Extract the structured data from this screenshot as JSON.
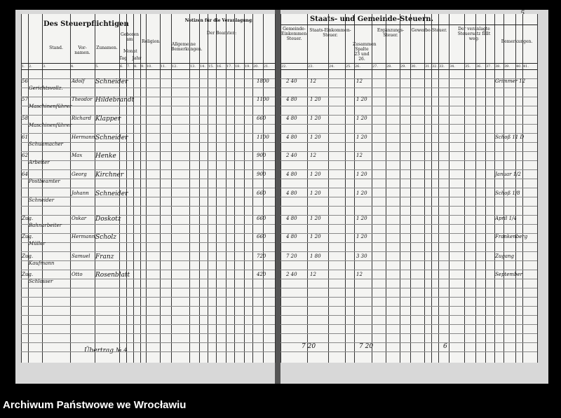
{
  "page_number": "5",
  "footer": "Archiwum Państwowe we Wrocławiu",
  "left": {
    "title": "Des Steuerpflichtigen",
    "stand": "Stand.",
    "vornamen": "Vor-namen.",
    "zunamen": "Zunamen.",
    "geboren": "Geboren am",
    "tag": "Tag",
    "monat": "Monat",
    "jahr": "Jahr",
    "religion": "Religion.",
    "notizen": "Notizen für die Veranlagung:",
    "allgemeine": "Allgemeine Bemerkungen.",
    "beamten": "Der Beamten:",
    "col_numbers": [
      "1.",
      "2.",
      "3.",
      "4.",
      "5.",
      "6.",
      "7.",
      "8.",
      "9.",
      "10.",
      "11.",
      "12.",
      "13.",
      "14.",
      "15.",
      "16.",
      "17.",
      "18.",
      "19.",
      "20.",
      "21."
    ],
    "rows": [
      {
        "nr": "56",
        "stand": "Gerichtsvollz.",
        "vorname": "Adolf",
        "zuname": "Schneider",
        "amount": "1800"
      },
      {
        "nr": "57",
        "stand": "Maschinenführer",
        "vorname": "Theodor",
        "zuname": "Hildebrandt",
        "amount": "1100"
      },
      {
        "nr": "58",
        "stand": "Maschinenführer",
        "vorname": "Richard",
        "zuname": "Klapper",
        "amount": "660"
      },
      {
        "nr": "61",
        "stand": "Schuhmacher",
        "vorname": "Hermann",
        "zuname": "Schneider",
        "amount": "1100"
      },
      {
        "nr": "62",
        "stand": "Arbeiter",
        "vorname": "Max",
        "zuname": "Henke",
        "amount": "900"
      },
      {
        "nr": "64",
        "stand": "Postbeamter",
        "vorname": "Georg",
        "zuname": "Kirchner",
        "amount": "900"
      },
      {
        "nr": "",
        "stand": "Schneider",
        "vorname": "Johann",
        "zuname": "Schneider",
        "amount": "660"
      },
      {
        "nr": "Zug.",
        "stand": "Bahnarbeiter",
        "vorname": "Oskar",
        "zuname": "Doskotz",
        "amount": "660"
      },
      {
        "nr": "Zug.",
        "stand": "Müller",
        "vorname": "Hermann",
        "zuname": "Scholz",
        "amount": "660"
      },
      {
        "nr": "Zug.",
        "stand": "Kaufmann",
        "vorname": "Samuel",
        "zuname": "Franz",
        "amount": "720"
      },
      {
        "nr": "Zug.",
        "stand": "Schlosser",
        "vorname": "Otto",
        "zuname": "Rosenblatt",
        "amount": "420"
      }
    ],
    "bottom_note": "Übertrag № 4"
  },
  "right": {
    "title": "Staats- und Gemeinde-Steuern.",
    "gemeinde_einkommen": "Gemeinde-Einkommen-Steuer.",
    "staats_einkommen": "Staats-Einkommen-Steuer.",
    "ergaenzung": "Ergänzungs-Steuer.",
    "gewerbe": "Gewerbe-Steuer.",
    "veranlagt": "Der veranlagte Steuersatz fällt weg:",
    "summe": "Zusammen Spalte 23 und 26.",
    "bemerkungen": "Bemerkungen.",
    "col_numbers": [
      "22.",
      "23.",
      "24.",
      "25.",
      "26.",
      "27.",
      "28.",
      "29.",
      "30.",
      "31.",
      "32.",
      "33.",
      "34.",
      "35.",
      "36.",
      "37.",
      "38.",
      "39.",
      "40.",
      "41."
    ],
    "rows": [
      {
        "a": "2 40",
        "b": "12",
        "c": "12",
        "rem": "Grimmer 12"
      },
      {
        "a": "4 80",
        "b": "1 20",
        "c": "1 20",
        "rem": ""
      },
      {
        "a": "4 80",
        "b": "1 20",
        "c": "1 20",
        "rem": ""
      },
      {
        "a": "4 80",
        "b": "1 20",
        "c": "1 20",
        "rem": "Schoß 11 D"
      },
      {
        "a": "2 40",
        "b": "12",
        "c": "12",
        "rem": ""
      },
      {
        "a": "4 80",
        "b": "1 20",
        "c": "1 20",
        "rem": "Januar 1/2"
      },
      {
        "a": "4 80",
        "b": "1 20",
        "c": "1 20",
        "rem": "Schoß 1/8"
      },
      {
        "a": "4 80",
        "b": "1 20",
        "c": "1 20",
        "rem": "April 1/4"
      },
      {
        "a": "4 80",
        "b": "1 20",
        "c": "1 20",
        "rem": "Frankenberg"
      },
      {
        "a": "7 20",
        "b": "1 80",
        "c": "3 30",
        "rem": "Zugang"
      },
      {
        "a": "2 40",
        "b": "12",
        "c": "12",
        "rem": "September"
      }
    ],
    "totals": [
      "7 20",
      "7 20",
      "6"
    ]
  }
}
